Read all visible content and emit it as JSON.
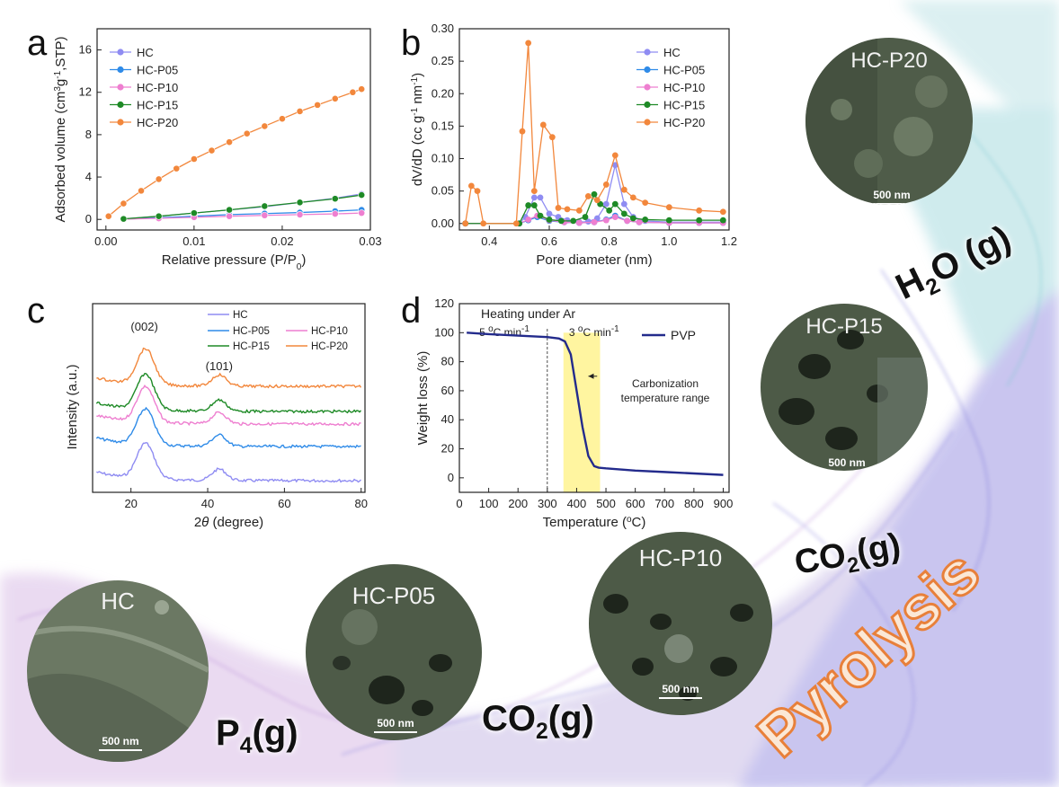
{
  "panels": {
    "a": "a",
    "b": "b",
    "c": "c",
    "d": "d"
  },
  "colors": {
    "HC": "#8f8cf2",
    "HC-P05": "#2f8be8",
    "HC-P10": "#ee7fd0",
    "HC-P15": "#1e8a26",
    "HC-P20": "#f2873c",
    "PVP": "#232b8c",
    "highlight": "#fff5a0"
  },
  "sem": {
    "scale_text": "500 nm",
    "HC": "HC",
    "HC-P05": "HC-P05",
    "HC-P10": "HC-P10",
    "HC-P15": "HC-P15",
    "HC-P20": "HC-P20"
  },
  "gases": {
    "p4": "P",
    "p4_sub": "4",
    "p4_tail": "(g)",
    "co2a": "CO",
    "co2a_sub": "2",
    "co2a_tail": "(g)",
    "co2b": "CO",
    "co2b_sub": "2",
    "co2b_tail": "(g)",
    "h2o_a": "H",
    "h2o_sub": "2",
    "h2o_b": "O (g)"
  },
  "pyrolysis": "Pyrolysis",
  "chart_data": [
    {
      "id": "a",
      "type": "scatter",
      "xlabel": "Relative pressure (P/P0)",
      "ylabel": "Adsorbed volume (cm3g-1,STP)",
      "xlim": [
        -0.001,
        0.03
      ],
      "ylim": [
        -1,
        18
      ],
      "xticks": [
        "0.00",
        "0.01",
        "0.02",
        "0.03"
      ],
      "yticks": [
        "0",
        "4",
        "8",
        "12",
        "16"
      ],
      "legend": "top-left",
      "series": [
        {
          "name": "HC",
          "x": [
            0.002,
            0.006,
            0.01,
            0.014,
            0.018,
            0.022,
            0.026,
            0.029
          ],
          "y": [
            0.05,
            0.3,
            0.6,
            0.9,
            1.2,
            1.6,
            2.0,
            2.4
          ]
        },
        {
          "name": "HC-P05",
          "x": [
            0.002,
            0.006,
            0.01,
            0.014,
            0.018,
            0.022,
            0.026,
            0.029
          ],
          "y": [
            0.03,
            0.15,
            0.3,
            0.45,
            0.55,
            0.65,
            0.78,
            0.9
          ]
        },
        {
          "name": "HC-P10",
          "x": [
            0.002,
            0.006,
            0.01,
            0.014,
            0.018,
            0.022,
            0.026,
            0.029
          ],
          "y": [
            0.02,
            0.1,
            0.2,
            0.3,
            0.38,
            0.45,
            0.52,
            0.6
          ]
        },
        {
          "name": "HC-P15",
          "x": [
            0.002,
            0.006,
            0.01,
            0.014,
            0.018,
            0.022,
            0.026,
            0.029
          ],
          "y": [
            0.05,
            0.3,
            0.6,
            0.9,
            1.25,
            1.6,
            1.95,
            2.3
          ]
        },
        {
          "name": "HC-P20",
          "x": [
            0.0003,
            0.002,
            0.004,
            0.006,
            0.008,
            0.01,
            0.012,
            0.014,
            0.016,
            0.018,
            0.02,
            0.022,
            0.024,
            0.026,
            0.028,
            0.029
          ],
          "y": [
            0.3,
            1.5,
            2.7,
            3.8,
            4.8,
            5.7,
            6.5,
            7.3,
            8.1,
            8.8,
            9.5,
            10.2,
            10.8,
            11.4,
            12.0,
            12.3
          ]
        }
      ]
    },
    {
      "id": "b",
      "type": "line",
      "xlabel": "Pore diameter (nm)",
      "ylabel": "dV/dD (cc g-1 nm-1)",
      "xlim": [
        0.3,
        1.2
      ],
      "ylim": [
        -0.01,
        0.3
      ],
      "xticks": [
        "0.4",
        "0.6",
        "0.8",
        "1.0",
        "1.2"
      ],
      "yticks": [
        "0.00",
        "0.05",
        "0.10",
        "0.15",
        "0.20",
        "0.25",
        "0.30"
      ],
      "legend": "top-right",
      "series": [
        {
          "name": "HC",
          "x": [
            0.32,
            0.5,
            0.52,
            0.55,
            0.57,
            0.6,
            0.63,
            0.66,
            0.7,
            0.73,
            0.76,
            0.79,
            0.82,
            0.85,
            0.88,
            0.92,
            1.0,
            1.1,
            1.18
          ],
          "y": [
            0,
            0,
            0.01,
            0.04,
            0.04,
            0.015,
            0.01,
            0.005,
            0.002,
            0.003,
            0.008,
            0.03,
            0.09,
            0.03,
            0.01,
            0.004,
            0.002,
            0.002,
            0.002
          ]
        },
        {
          "name": "HC-P05",
          "x": [
            0.32,
            0.5,
            0.53,
            0.56,
            0.6,
            0.65,
            0.7,
            0.75,
            0.79,
            0.82,
            0.86,
            0.9,
            1.0,
            1.1,
            1.18
          ],
          "y": [
            0,
            0,
            0.005,
            0.01,
            0.004,
            0.002,
            0.001,
            0.002,
            0.006,
            0.012,
            0.004,
            0.002,
            0.001,
            0.001,
            0.001
          ]
        },
        {
          "name": "HC-P10",
          "x": [
            0.32,
            0.5,
            0.53,
            0.56,
            0.6,
            0.65,
            0.7,
            0.75,
            0.79,
            0.82,
            0.86,
            0.9,
            1.0,
            1.1,
            1.18
          ],
          "y": [
            0,
            0,
            0.006,
            0.012,
            0.005,
            0.002,
            0.001,
            0.002,
            0.005,
            0.01,
            0.004,
            0.002,
            0.001,
            0.001,
            0.001
          ]
        },
        {
          "name": "HC-P15",
          "x": [
            0.32,
            0.5,
            0.53,
            0.55,
            0.57,
            0.6,
            0.64,
            0.68,
            0.72,
            0.75,
            0.77,
            0.8,
            0.82,
            0.85,
            0.88,
            0.92,
            1.0,
            1.1,
            1.18
          ],
          "y": [
            0,
            0,
            0.028,
            0.028,
            0.012,
            0.006,
            0.004,
            0.004,
            0.01,
            0.045,
            0.03,
            0.02,
            0.03,
            0.015,
            0.008,
            0.006,
            0.005,
            0.005,
            0.005
          ]
        },
        {
          "name": "HC-P20",
          "x": [
            0.32,
            0.34,
            0.36,
            0.38,
            0.49,
            0.51,
            0.53,
            0.55,
            0.58,
            0.61,
            0.63,
            0.66,
            0.7,
            0.73,
            0.76,
            0.79,
            0.82,
            0.85,
            0.88,
            0.92,
            1.0,
            1.1,
            1.18
          ],
          "y": [
            0,
            0.058,
            0.05,
            0,
            0,
            0.142,
            0.278,
            0.05,
            0.152,
            0.133,
            0.024,
            0.022,
            0.02,
            0.042,
            0.036,
            0.06,
            0.105,
            0.052,
            0.04,
            0.032,
            0.025,
            0.02,
            0.018
          ]
        }
      ]
    },
    {
      "id": "c",
      "type": "line",
      "xlabel": "2θ (degree)",
      "ylabel": "Intensity (a.u.)",
      "xlim": [
        10,
        81
      ],
      "xticks": [
        "20",
        "40",
        "60",
        "80"
      ],
      "annotations": [
        "(002)",
        "(101)"
      ],
      "legend": "top",
      "series": [
        {
          "name": "HC",
          "offset": 0
        },
        {
          "name": "HC-P05",
          "offset": 1
        },
        {
          "name": "HC-P10",
          "offset": 2
        },
        {
          "name": "HC-P15",
          "offset": 3
        },
        {
          "name": "HC-P20",
          "offset": 4
        }
      ]
    },
    {
      "id": "d",
      "type": "line",
      "title": "Heating under Ar",
      "xlabel": "Temperature (°C)",
      "ylabel": "Weight loss (%)",
      "xlim": [
        0,
        920
      ],
      "ylim": [
        -10,
        120
      ],
      "xticks": [
        "0",
        "100",
        "200",
        "300",
        "400",
        "500",
        "600",
        "700",
        "800",
        "900"
      ],
      "yticks": [
        "0",
        "20",
        "40",
        "60",
        "80",
        "100",
        "120"
      ],
      "rate1": "5 °C min-1",
      "rate2": "3 °C min-1",
      "annotation": [
        "Carbonization",
        "temperature range"
      ],
      "band": [
        355,
        480
      ],
      "divider": 300,
      "legend": "top-right",
      "series": [
        {
          "name": "PVP",
          "x": [
            25,
            100,
            200,
            300,
            340,
            360,
            380,
            400,
            420,
            440,
            460,
            475,
            500,
            600,
            700,
            800,
            900
          ],
          "y": [
            100,
            99,
            98,
            97,
            96,
            94,
            85,
            60,
            35,
            15,
            8,
            7,
            6.5,
            5,
            4,
            3,
            2
          ]
        }
      ]
    }
  ]
}
